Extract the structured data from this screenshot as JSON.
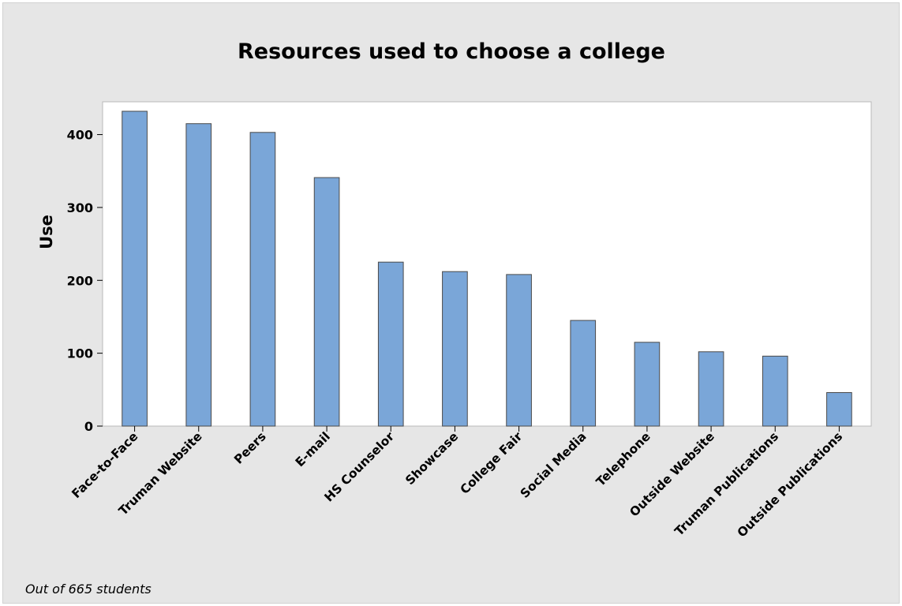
{
  "chart_data": {
    "type": "bar",
    "title": "Resources used to choose a college",
    "xlabel": "",
    "ylabel": "Use",
    "ylim": [
      0,
      445
    ],
    "yticks": [
      0,
      100,
      200,
      300,
      400
    ],
    "grid": false,
    "legend": "none",
    "categories": [
      "Face-to-Face",
      "Truman Website",
      "Peers",
      "E-mail",
      "HS Counselor",
      "Showcase",
      "College Fair",
      "Social Media",
      "Telephone",
      "Outside Website",
      "Truman Publications",
      "Outside Publications"
    ],
    "values": [
      432,
      415,
      403,
      341,
      225,
      212,
      208,
      145,
      115,
      102,
      96,
      46
    ],
    "bar_color": "#7aa6d8",
    "bar_edge_color": "#4a4a4a",
    "background_color": "#e6e6e6",
    "plot_background_color": "#ffffff",
    "footnote": "Out of 665 students"
  }
}
